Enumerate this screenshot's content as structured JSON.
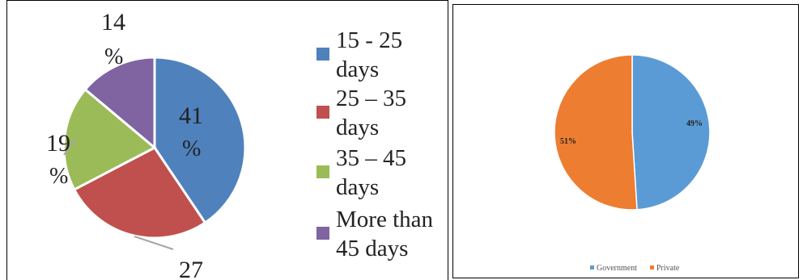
{
  "chart_data": [
    {
      "type": "pie",
      "title": "",
      "slices": [
        {
          "label": "15 - 25 days",
          "value": 41,
          "pct_text": "41",
          "pct_sign": "%",
          "color": "#4F81BD"
        },
        {
          "label": "25 – 35 days",
          "value": 27,
          "pct_text": "27",
          "pct_sign": "",
          "color": "#C0504D"
        },
        {
          "label": "35 – 45 days",
          "value": 19,
          "pct_text": "19",
          "pct_sign": "%",
          "color": "#9BBB59"
        },
        {
          "label": "More than 45 days",
          "value": 14,
          "pct_text": "14",
          "pct_sign": "%",
          "color": "#8064A2"
        }
      ],
      "legend": {
        "position": "right",
        "entries": [
          {
            "line1": "15 - 25",
            "line2": "days"
          },
          {
            "line1": "25 – 35",
            "line2": "days"
          },
          {
            "line1": "35 – 45",
            "line2": "days"
          },
          {
            "line1": "More than",
            "line2": "45 days"
          }
        ]
      }
    },
    {
      "type": "pie",
      "title": "",
      "slices": [
        {
          "label": "Government",
          "value": 49,
          "pct_text": "49%",
          "color": "#5B9BD5"
        },
        {
          "label": "Private",
          "value": 51,
          "pct_text": "51%",
          "color": "#ED7D31"
        }
      ],
      "legend": {
        "position": "bottom",
        "entries": [
          "Government",
          "Private"
        ]
      }
    }
  ]
}
